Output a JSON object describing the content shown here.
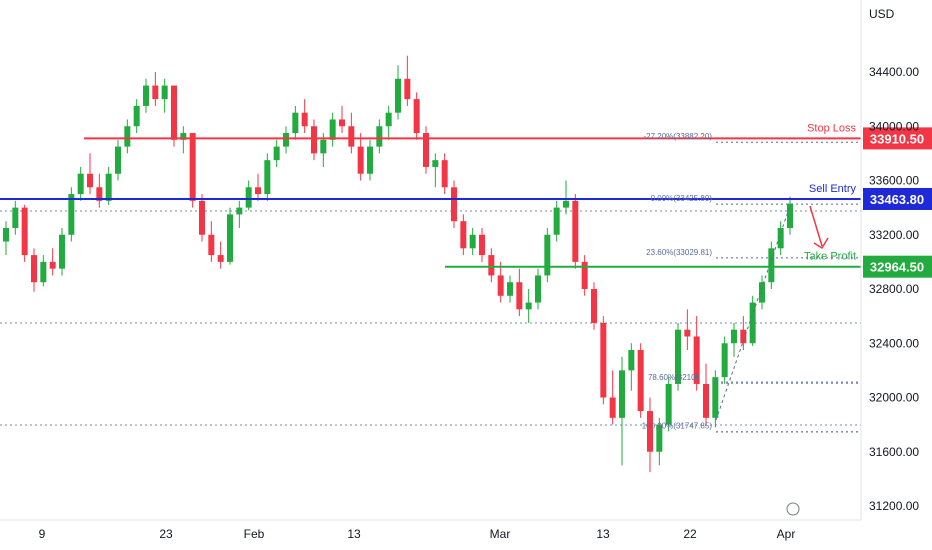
{
  "chart_data": {
    "type": "candlestick",
    "currency": "USD",
    "x_ticks": [
      "9",
      "23",
      "Feb",
      "13",
      "Mar",
      "13",
      "22",
      "Apr"
    ],
    "y_ticks": [
      "34400.00",
      "34000.00",
      "33600.00",
      "33200.00",
      "32800.00",
      "32400.00",
      "32000.00",
      "31600.00",
      "31200.00"
    ],
    "ylim": [
      31100,
      34800
    ],
    "levels": [
      {
        "name": "Stop Loss",
        "price_label": "33910.50",
        "value": 33910.5,
        "color": "#f23645"
      },
      {
        "name": "Sell Entry",
        "price_label": "33463.80",
        "value": 33463.8,
        "color": "#1e2ad8"
      },
      {
        "name": "Take Profit",
        "price_label": "32964.50",
        "value": 32964.5,
        "color": "#22ab3e"
      }
    ],
    "fib_labels": [
      {
        "text": "-27.20%(33882.20)",
        "value": 33882.2
      },
      {
        "text": "0.00%(33425.80)",
        "value": 33425.8
      },
      {
        "text": "23.60%(33029.81)",
        "value": 33029.81
      },
      {
        "text": "78.60%(32106",
        "value": 32106
      },
      {
        "text": "100.00%(31747.85)",
        "value": 31747.85
      }
    ],
    "candles": [
      [
        33150,
        33300,
        33050,
        33250
      ],
      [
        33250,
        33450,
        33200,
        33400
      ],
      [
        33400,
        33420,
        33000,
        33050
      ],
      [
        33050,
        33100,
        32780,
        32850
      ],
      [
        32850,
        33050,
        32820,
        33000
      ],
      [
        33000,
        33100,
        32900,
        32950
      ],
      [
        32950,
        33250,
        32900,
        33200
      ],
      [
        33200,
        33550,
        33150,
        33500
      ],
      [
        33500,
        33700,
        33450,
        33650
      ],
      [
        33650,
        33800,
        33500,
        33550
      ],
      [
        33550,
        33650,
        33400,
        33450
      ],
      [
        33450,
        33700,
        33420,
        33650
      ],
      [
        33650,
        33900,
        33600,
        33850
      ],
      [
        33850,
        34050,
        33800,
        34000
      ],
      [
        34000,
        34200,
        33950,
        34150
      ],
      [
        34150,
        34350,
        34100,
        34300
      ],
      [
        34300,
        34400,
        34150,
        34200
      ],
      [
        34200,
        34350,
        34100,
        34300
      ],
      [
        34300,
        34300,
        33850,
        33900
      ],
      [
        33900,
        34000,
        33800,
        33950
      ],
      [
        33950,
        33950,
        33400,
        33450
      ],
      [
        33450,
        33500,
        33150,
        33200
      ],
      [
        33200,
        33300,
        33000,
        33050
      ],
      [
        33050,
        33150,
        32950,
        33000
      ],
      [
        33000,
        33400,
        32980,
        33350
      ],
      [
        33350,
        33450,
        33250,
        33400
      ],
      [
        33400,
        33600,
        33380,
        33550
      ],
      [
        33550,
        33650,
        33450,
        33500
      ],
      [
        33500,
        33800,
        33450,
        33750
      ],
      [
        33750,
        33900,
        33700,
        33850
      ],
      [
        33850,
        34000,
        33800,
        33950
      ],
      [
        33950,
        34150,
        33900,
        34100
      ],
      [
        34100,
        34200,
        33950,
        34000
      ],
      [
        34000,
        34050,
        33750,
        33800
      ],
      [
        33800,
        33950,
        33700,
        33900
      ],
      [
        33900,
        34100,
        33850,
        34050
      ],
      [
        34050,
        34150,
        33950,
        34000
      ],
      [
        34000,
        34100,
        33800,
        33850
      ],
      [
        33850,
        33950,
        33600,
        33650
      ],
      [
        33650,
        33900,
        33600,
        33850
      ],
      [
        33850,
        34050,
        33800,
        34000
      ],
      [
        34000,
        34150,
        33900,
        34100
      ],
      [
        34100,
        34450,
        34050,
        34350
      ],
      [
        34350,
        34520,
        34150,
        34200
      ],
      [
        34200,
        34250,
        33900,
        33950
      ],
      [
        33950,
        34000,
        33650,
        33700
      ],
      [
        33700,
        33800,
        33550,
        33750
      ],
      [
        33750,
        33800,
        33500,
        33550
      ],
      [
        33550,
        33600,
        33250,
        33300
      ],
      [
        33300,
        33350,
        33050,
        33100
      ],
      [
        33100,
        33250,
        33050,
        33200
      ],
      [
        33200,
        33250,
        33000,
        33050
      ],
      [
        33050,
        33100,
        32850,
        32900
      ],
      [
        32900,
        33000,
        32700,
        32750
      ],
      [
        32750,
        32900,
        32700,
        32850
      ],
      [
        32850,
        32950,
        32600,
        32650
      ],
      [
        32650,
        32800,
        32550,
        32700
      ],
      [
        32700,
        32950,
        32650,
        32900
      ],
      [
        32900,
        33250,
        32850,
        33200
      ],
      [
        33200,
        33450,
        33150,
        33400
      ],
      [
        33400,
        33600,
        33350,
        33450
      ],
      [
        33450,
        33500,
        32950,
        33000
      ],
      [
        33000,
        33050,
        32750,
        32800
      ],
      [
        32800,
        32850,
        32500,
        32550
      ],
      [
        32550,
        32600,
        31950,
        32000
      ],
      [
        32000,
        32200,
        31800,
        31850
      ],
      [
        31850,
        32300,
        31500,
        32200
      ],
      [
        32200,
        32400,
        32050,
        32350
      ],
      [
        32350,
        32400,
        31850,
        31900
      ],
      [
        31900,
        32000,
        31450,
        31600
      ],
      [
        31600,
        31850,
        31500,
        31800
      ],
      [
        31800,
        32150,
        31750,
        32100
      ],
      [
        32100,
        32550,
        32050,
        32500
      ],
      [
        32500,
        32650,
        32350,
        32450
      ],
      [
        32450,
        32600,
        32050,
        32100
      ],
      [
        32100,
        32250,
        31800,
        31850
      ],
      [
        31850,
        32200,
        31780,
        32150
      ],
      [
        32150,
        32450,
        32100,
        32400
      ],
      [
        32400,
        32550,
        32300,
        32500
      ],
      [
        32500,
        32600,
        32350,
        32400
      ],
      [
        32400,
        32750,
        32380,
        32700
      ],
      [
        32700,
        32900,
        32650,
        32850
      ],
      [
        32850,
        33150,
        32800,
        33100
      ],
      [
        33100,
        33300,
        33050,
        33250
      ],
      [
        33250,
        33480,
        33200,
        33430
      ]
    ]
  }
}
